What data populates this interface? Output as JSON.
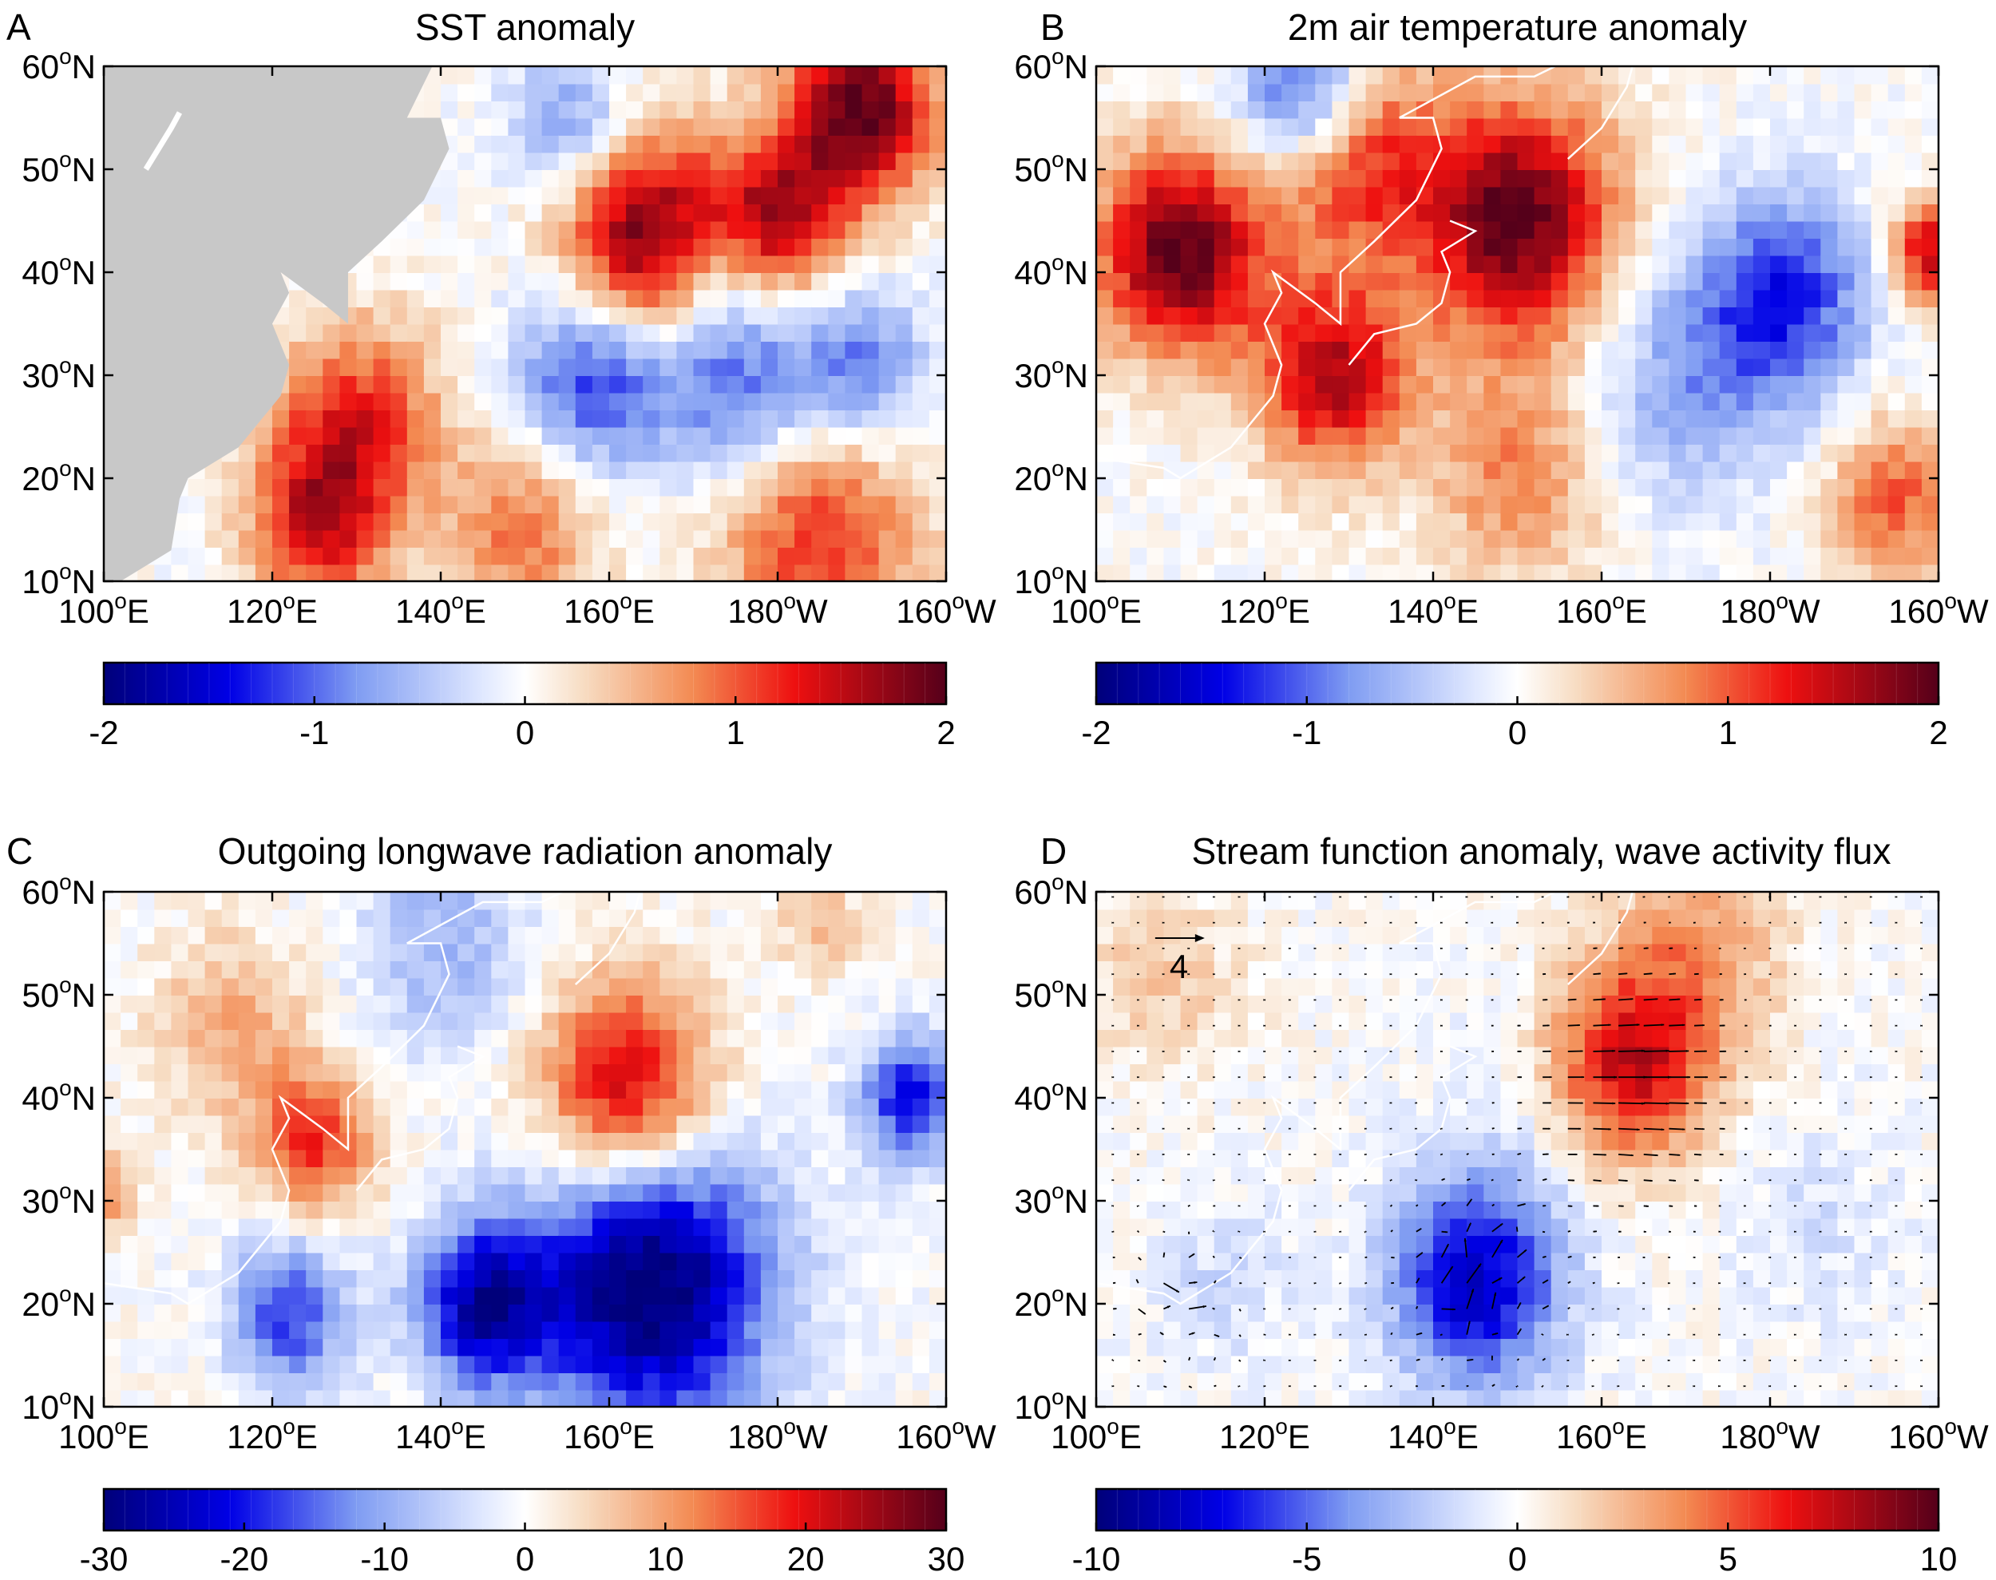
{
  "figure_title": "Four-panel climate anomaly maps over the North Pacific",
  "chart_data": [
    {
      "type": "heatmap",
      "panel": "A",
      "title": "SST  anomaly",
      "xlabel": "",
      "ylabel": "",
      "x_ticks": [
        "100",
        "120",
        "140",
        "160",
        "180",
        "160"
      ],
      "x_tick_suffix": [
        "E",
        "E",
        "E",
        "E",
        "W",
        "W"
      ],
      "y_ticks": [
        "10",
        "20",
        "30",
        "40",
        "50",
        "60"
      ],
      "y_tick_suffix": "N",
      "degree_symbol": "o",
      "xlim": [
        100,
        200
      ],
      "ylim": [
        10,
        60
      ],
      "colorbar": {
        "min": -2,
        "max": 2,
        "ticks": [
          "-2",
          "-1",
          "0",
          "1",
          "2"
        ]
      },
      "land_color": "#c8c8c8",
      "features": [
        {
          "lon": 165,
          "lat": 43,
          "value": 2.0,
          "r": 10
        },
        {
          "lon": 180,
          "lat": 45,
          "value": 1.5,
          "r": 8
        },
        {
          "lon": 190,
          "lat": 56,
          "value": 2.0,
          "r": 9
        },
        {
          "lon": 158,
          "lat": 30,
          "value": -1.3,
          "r": 9
        },
        {
          "lon": 175,
          "lat": 30,
          "value": -1.1,
          "r": 10
        },
        {
          "lon": 190,
          "lat": 31,
          "value": -0.9,
          "r": 8
        },
        {
          "lon": 130,
          "lat": 25,
          "value": 1.3,
          "r": 10
        },
        {
          "lon": 125,
          "lat": 15,
          "value": 1.2,
          "r": 8
        },
        {
          "lon": 185,
          "lat": 14,
          "value": 1.2,
          "r": 12
        },
        {
          "lon": 150,
          "lat": 15,
          "value": 0.9,
          "r": 9
        },
        {
          "lon": 155,
          "lat": 55,
          "value": -0.8,
          "r": 7
        },
        {
          "lon": 172,
          "lat": 41,
          "value": -0.6,
          "r": 6
        }
      ]
    },
    {
      "type": "heatmap",
      "panel": "B",
      "title": "2m air temperature anomaly",
      "xlabel": "",
      "ylabel": "",
      "x_ticks": [
        "100",
        "120",
        "140",
        "160",
        "180",
        "160"
      ],
      "x_tick_suffix": [
        "E",
        "E",
        "E",
        "E",
        "W",
        "W"
      ],
      "y_ticks": [
        "10",
        "20",
        "30",
        "40",
        "50",
        "60"
      ],
      "y_tick_suffix": "N",
      "degree_symbol": "o",
      "xlim": [
        100,
        200
      ],
      "ylim": [
        10,
        60
      ],
      "colorbar": {
        "min": -2,
        "max": 2,
        "ticks": [
          "-2",
          "-1",
          "0",
          "1",
          "2"
        ]
      },
      "features": [
        {
          "lon": 110,
          "lat": 42,
          "value": 2.0,
          "r": 10
        },
        {
          "lon": 150,
          "lat": 45,
          "value": 2.0,
          "r": 12
        },
        {
          "lon": 130,
          "lat": 52,
          "value": 1.4,
          "r": 10
        },
        {
          "lon": 128,
          "lat": 30,
          "value": 1.6,
          "r": 9
        },
        {
          "lon": 125,
          "lat": 57,
          "value": -1.6,
          "r": 8
        },
        {
          "lon": 182,
          "lat": 38,
          "value": -1.2,
          "r": 10
        },
        {
          "lon": 170,
          "lat": 30,
          "value": -0.7,
          "r": 12
        },
        {
          "lon": 150,
          "lat": 20,
          "value": 0.8,
          "r": 10
        },
        {
          "lon": 195,
          "lat": 18,
          "value": 1.0,
          "r": 8
        },
        {
          "lon": 199,
          "lat": 42,
          "value": 1.5,
          "r": 5
        }
      ]
    },
    {
      "type": "heatmap",
      "panel": "C",
      "title": "Outgoing longwave radiation anomaly",
      "xlabel": "",
      "ylabel": "",
      "x_ticks": [
        "100",
        "120",
        "140",
        "160",
        "180",
        "160"
      ],
      "x_tick_suffix": [
        "E",
        "E",
        "E",
        "E",
        "W",
        "W"
      ],
      "y_ticks": [
        "10",
        "20",
        "30",
        "40",
        "50",
        "60"
      ],
      "y_tick_suffix": "N",
      "degree_symbol": "o",
      "xlim": [
        100,
        200
      ],
      "ylim": [
        10,
        60
      ],
      "colorbar": {
        "min": -30,
        "max": 30,
        "ticks": [
          "-30",
          "-20",
          "-10",
          "0",
          "10",
          "20",
          "30"
        ]
      },
      "features": [
        {
          "lon": 162,
          "lat": 41,
          "value": 25,
          "r": 10
        },
        {
          "lon": 125,
          "lat": 36,
          "value": 18,
          "r": 7
        },
        {
          "lon": 115,
          "lat": 47,
          "value": 9,
          "r": 9
        },
        {
          "lon": 165,
          "lat": 22,
          "value": -32,
          "r": 14
        },
        {
          "lon": 145,
          "lat": 20,
          "value": -25,
          "r": 8
        },
        {
          "lon": 122,
          "lat": 19,
          "value": -18,
          "r": 7
        },
        {
          "lon": 196,
          "lat": 40,
          "value": -22,
          "r": 6
        },
        {
          "lon": 140,
          "lat": 55,
          "value": -9,
          "r": 10
        },
        {
          "lon": 100,
          "lat": 31,
          "value": 12,
          "r": 4
        },
        {
          "lon": 185,
          "lat": 57,
          "value": 7,
          "r": 5
        }
      ]
    },
    {
      "type": "heatmap",
      "panel": "D",
      "title": "Stream function anomaly, wave activity flux",
      "xlabel": "",
      "ylabel": "",
      "x_ticks": [
        "100",
        "120",
        "140",
        "160",
        "180",
        "160"
      ],
      "x_tick_suffix": [
        "E",
        "E",
        "E",
        "E",
        "W",
        "W"
      ],
      "y_ticks": [
        "10",
        "20",
        "30",
        "40",
        "50",
        "60"
      ],
      "y_tick_suffix": "N",
      "degree_symbol": "o",
      "xlim": [
        100,
        200
      ],
      "ylim": [
        10,
        60
      ],
      "colorbar": {
        "min": -10,
        "max": 10,
        "ticks": [
          "-10",
          "-5",
          "0",
          "5",
          "10"
        ]
      },
      "reference_vector_label": "4",
      "features": [
        {
          "lon": 163,
          "lat": 43,
          "value": 8,
          "r": 10
        },
        {
          "lon": 172,
          "lat": 55,
          "value": 3,
          "r": 10
        },
        {
          "lon": 108,
          "lat": 52,
          "value": 2,
          "r": 9
        },
        {
          "lon": 145,
          "lat": 22,
          "value": -8,
          "r": 10
        },
        {
          "lon": 155,
          "lat": 38,
          "value": -1.5,
          "r": 12
        },
        {
          "lon": 185,
          "lat": 28,
          "value": -1.2,
          "r": 10
        },
        {
          "lon": 115,
          "lat": 22,
          "value": -1.5,
          "r": 8
        }
      ]
    }
  ]
}
